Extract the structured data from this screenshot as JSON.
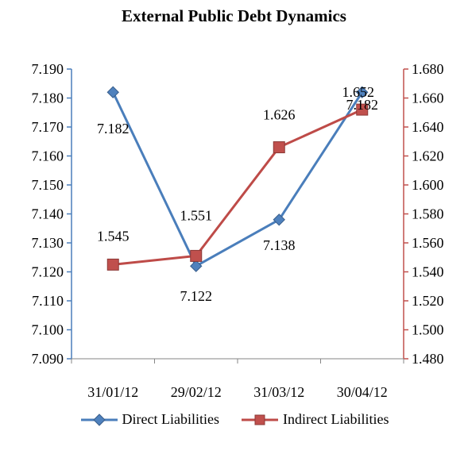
{
  "chart_data": {
    "type": "line",
    "title": "External Public Debt Dynamics",
    "categories": [
      "31/01/12",
      "29/02/12",
      "31/03/12",
      "30/04/12"
    ],
    "series": [
      {
        "name": "Direct Liabilities",
        "axis": "left",
        "color": "#4a7ebb",
        "marker": "diamond",
        "values": [
          7.182,
          7.122,
          7.138,
          7.182
        ],
        "labels": [
          "7.182",
          "7.122",
          "7.138",
          "7.182"
        ]
      },
      {
        "name": "Indirect Liabilities",
        "axis": "right",
        "color": "#be4b48",
        "marker": "square",
        "values": [
          1.545,
          1.551,
          1.626,
          1.652
        ],
        "labels": [
          "1.545",
          "1.551",
          "1.626",
          "1.652"
        ]
      }
    ],
    "y_left": {
      "range": [
        7.09,
        7.19
      ],
      "ticks": [
        "7.190",
        "7.180",
        "7.170",
        "7.160",
        "7.150",
        "7.140",
        "7.130",
        "7.120",
        "7.110",
        "7.100",
        "7.090"
      ],
      "color": "#4a7ebb"
    },
    "y_right": {
      "range": [
        1.48,
        1.68
      ],
      "ticks": [
        "1.680",
        "1.660",
        "1.640",
        "1.620",
        "1.600",
        "1.580",
        "1.560",
        "1.540",
        "1.520",
        "1.500",
        "1.480"
      ],
      "color": "#c0504d"
    },
    "grid": false,
    "legend_position": "bottom"
  }
}
